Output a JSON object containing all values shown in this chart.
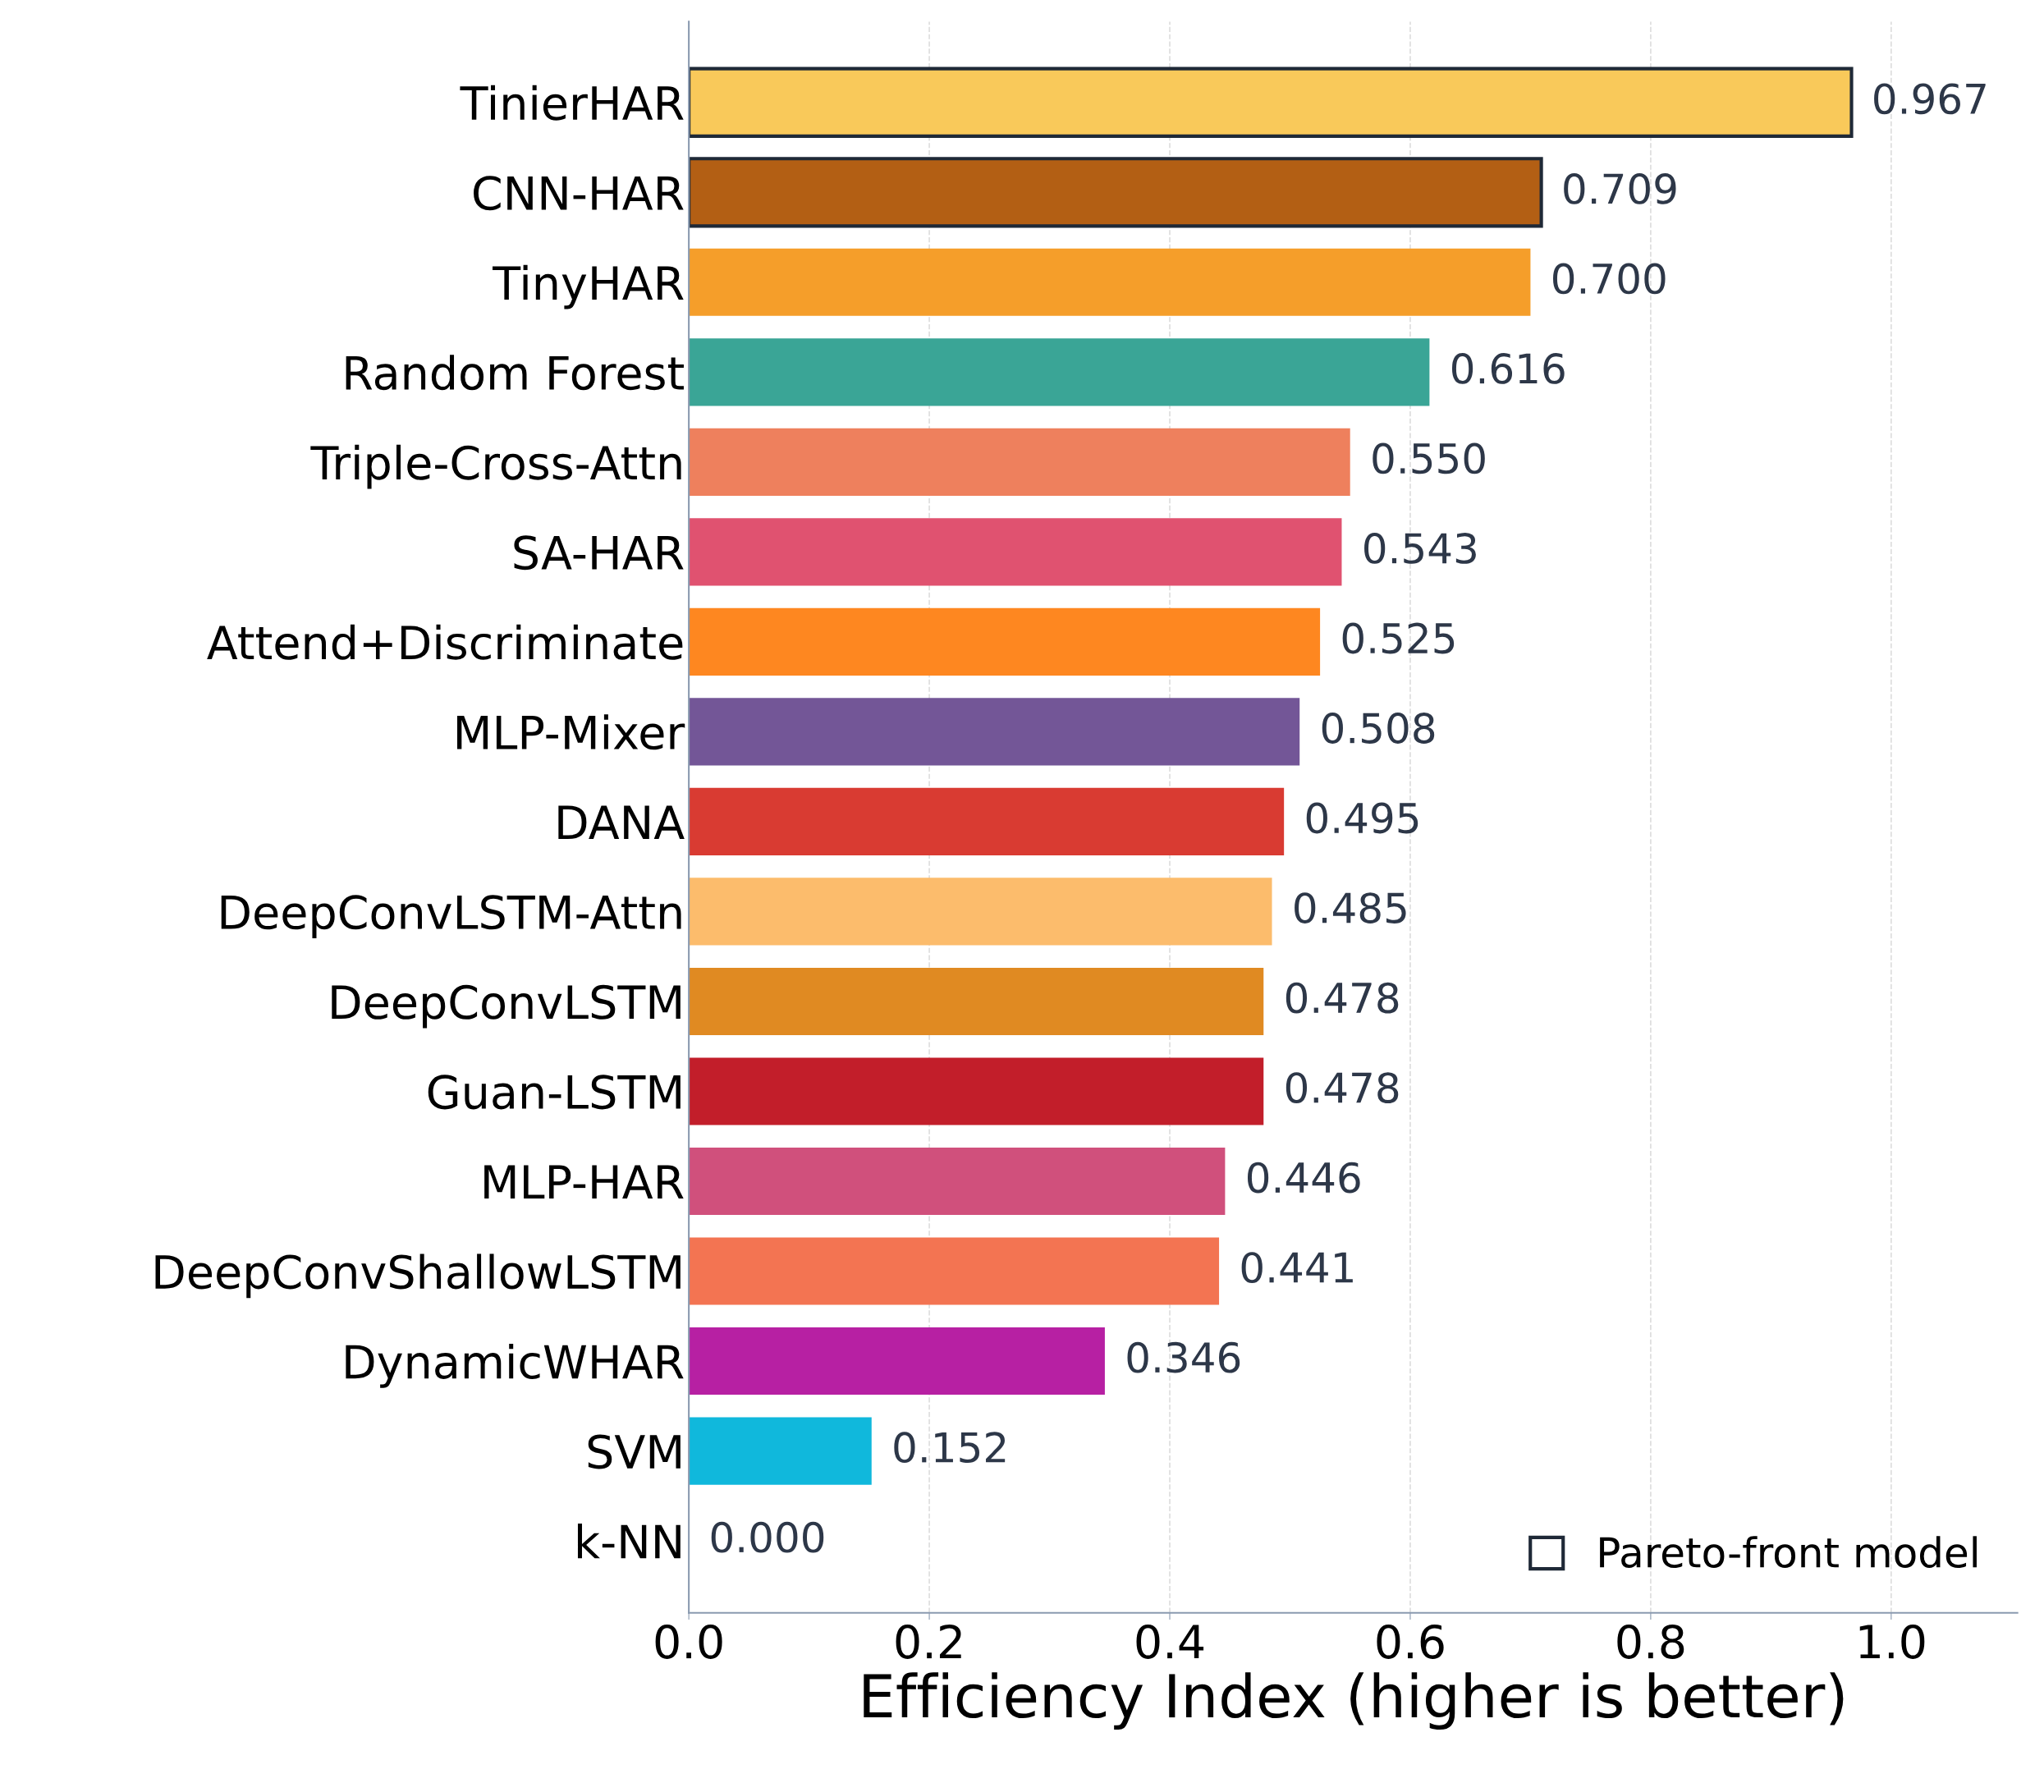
{
  "chart_data": {
    "type": "bar",
    "orientation": "horizontal",
    "xlabel": "Efficiency Index (higher is better)",
    "categories": [
      "TinierHAR",
      "CNN-HAR",
      "TinyHAR",
      "Random Forest",
      "Triple-Cross-Attn",
      "SA-HAR",
      "Attend+Discriminate",
      "MLP-Mixer",
      "DANA",
      "DeepConvLSTM-Attn",
      "DeepConvLSTM",
      "Guan-LSTM",
      "MLP-HAR",
      "DeepConvShallowLSTM",
      "DynamicWHAR",
      "SVM",
      "k-NN"
    ],
    "series": [
      {
        "colors": [
          null,
          null,
          "#f59e2a",
          "#3aa596",
          "#ee805d",
          "#e05270",
          "#fe8720",
          "#735697",
          "#d93b32",
          "#fcbc6c",
          "#e08a22",
          "#c21e2a",
          "#d0507c",
          "#f37452",
          "#b720a3",
          "#10b8dc",
          "#888888"
        ],
        "values": [
          null,
          null,
          0.7,
          0.616,
          0.55,
          0.543,
          0.525,
          0.508,
          0.495,
          0.485,
          0.478,
          0.478,
          0.446,
          0.441,
          0.346,
          0.152,
          0.0
        ]
      },
      {
        "name": "Pareto-front model",
        "color": "#1f2937",
        "colors": [
          "#f9c95a",
          "#b35f14",
          null,
          null,
          null,
          null,
          null,
          null,
          null,
          null,
          null,
          null,
          null,
          null,
          null,
          null,
          null
        ],
        "values": [
          0.967,
          0.709,
          null,
          null,
          null,
          null,
          null,
          null,
          null,
          null,
          null,
          null,
          null,
          null,
          null,
          null,
          null
        ]
      }
    ],
    "value_labels": [
      "0.967",
      "0.709",
      "0.700",
      "0.616",
      "0.550",
      "0.543",
      "0.525",
      "0.508",
      "0.495",
      "0.485",
      "0.478",
      "0.478",
      "0.446",
      "0.441",
      "0.346",
      "0.152",
      "0.000"
    ],
    "xlim": [
      0,
      1.105
    ],
    "xticks": [
      {
        "value": 0,
        "label": "0.0"
      },
      0.2,
      0.4,
      0.6,
      0.8,
      {
        "value": 1,
        "label": "1.0"
      }
    ],
    "grid": "x",
    "legend": "bottom right"
  }
}
